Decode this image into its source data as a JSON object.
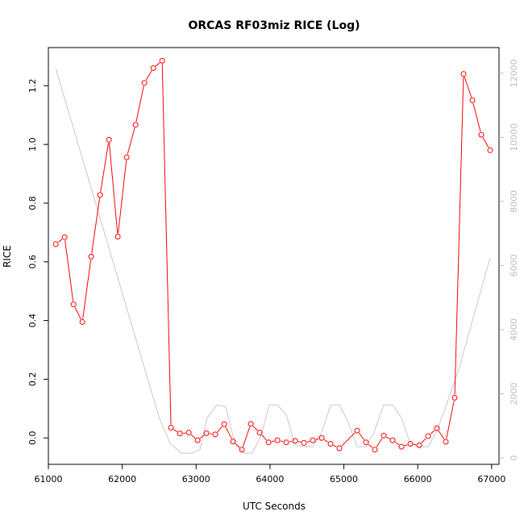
{
  "chart_data": {
    "type": "line",
    "title": "ORCAS RF03miz RICE (Log)",
    "xlabel": "UTC Seconds",
    "ylabel": "RICE",
    "xlim": [
      61000,
      67100
    ],
    "ylim": [
      -0.09,
      1.33
    ],
    "y2lim": [
      -200,
      12800
    ],
    "x_ticks": [
      61000,
      62000,
      63000,
      64000,
      65000,
      66000,
      67000
    ],
    "y_ticks": [
      0.0,
      0.2,
      0.4,
      0.6,
      0.8,
      1.0,
      1.2
    ],
    "y_tick_labels": [
      "0.0",
      "0.2",
      "0.4",
      "0.6",
      "0.8",
      "1.0",
      "1.2"
    ],
    "y2_ticks": [
      0,
      2000,
      4000,
      6000,
      8000,
      10000,
      12000
    ],
    "grid": false,
    "colors": {
      "rice": "#ff0000",
      "secondary": "#c8c8c8",
      "axis": "#000000",
      "secondary_axis": "#bdbdbd"
    },
    "series": [
      {
        "name": "RICE",
        "axis": "left",
        "x": [
          61100,
          61220,
          61340,
          61460,
          61580,
          61700,
          61820,
          61940,
          62060,
          62180,
          62300,
          62420,
          62540,
          62660,
          62780,
          62900,
          63020,
          63140,
          63260,
          63380,
          63500,
          63620,
          63740,
          63860,
          63980,
          64100,
          64220,
          64340,
          64460,
          64580,
          64700,
          64820,
          64940,
          65180,
          65300,
          65420,
          65540,
          65660,
          65780,
          65900,
          66020,
          66140,
          66260,
          66380,
          66500,
          66620,
          66740,
          66860,
          66980
        ],
        "y": [
          0.66,
          0.684,
          0.455,
          0.395,
          0.618,
          0.828,
          1.016,
          0.686,
          0.956,
          1.067,
          1.21,
          1.26,
          1.285,
          0.035,
          0.015,
          0.018,
          -0.008,
          0.016,
          0.012,
          0.047,
          -0.012,
          -0.04,
          0.048,
          0.018,
          -0.015,
          -0.008,
          -0.015,
          -0.01,
          -0.017,
          -0.008,
          0.0,
          -0.02,
          -0.035,
          0.025,
          -0.015,
          -0.04,
          0.008,
          -0.008,
          -0.03,
          -0.02,
          -0.025,
          0.006,
          0.033,
          -0.013,
          0.137,
          1.24,
          1.15,
          1.033,
          0.98
        ]
      },
      {
        "name": "",
        "axis": "right",
        "x": [
          61100,
          62500,
          62650,
          62800,
          62950,
          63050,
          63150,
          63280,
          63400,
          63520,
          63640,
          63760,
          63880,
          63990,
          64100,
          64220,
          64340,
          64450,
          64580,
          64700,
          64820,
          64940,
          65060,
          65180,
          65300,
          65400,
          65540,
          65660,
          65780,
          65900,
          66020,
          66140,
          66260,
          66380,
          66560,
          66980
        ],
        "y": [
          12150,
          1250,
          450,
          150,
          150,
          250,
          1250,
          1650,
          1600,
          500,
          150,
          150,
          700,
          1650,
          1650,
          1350,
          400,
          350,
          350,
          800,
          1650,
          1650,
          1100,
          350,
          350,
          750,
          1650,
          1650,
          1250,
          450,
          350,
          350,
          850,
          1600,
          2800,
          6250
        ]
      }
    ]
  }
}
